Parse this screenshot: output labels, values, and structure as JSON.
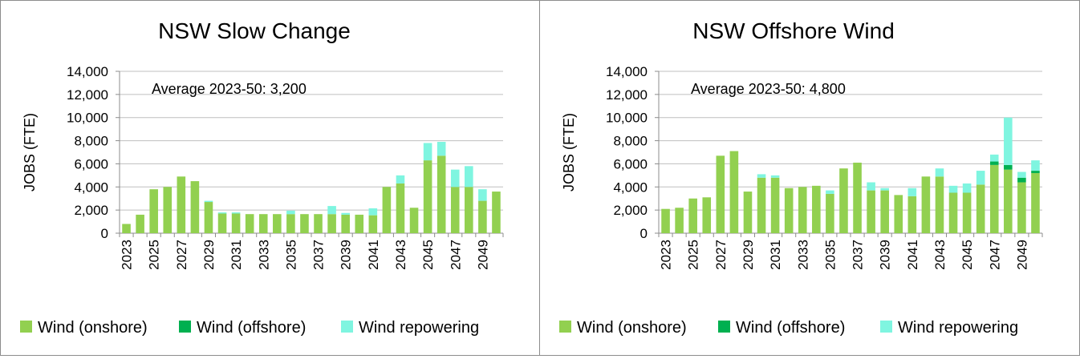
{
  "colors": {
    "onshore": "#92d050",
    "offshore": "#00b050",
    "repowering": "#7ff5e0",
    "grid": "#bfbfbf",
    "axis": "#8c8c8c"
  },
  "chart_data": [
    {
      "type": "bar",
      "stacked": true,
      "title": "NSW Slow Change",
      "ylabel": "JOBS (FTE)",
      "xlabel": "",
      "ylim": [
        0,
        14000
      ],
      "yticks": [
        "0",
        "2,000",
        "4,000",
        "6,000",
        "8,000",
        "10,000",
        "12,000",
        "14,000"
      ],
      "annotation": "Average 2023-50: 3,200",
      "categories": [
        "2023",
        "2024",
        "2025",
        "2026",
        "2027",
        "2028",
        "2029",
        "2030",
        "2031",
        "2032",
        "2033",
        "2034",
        "2035",
        "2036",
        "2037",
        "2038",
        "2039",
        "2040",
        "2041",
        "2042",
        "2043",
        "2044",
        "2045",
        "2046",
        "2047",
        "2048",
        "2049",
        "2050"
      ],
      "xtick_labels": [
        "2023",
        "",
        "2025",
        "",
        "2027",
        "",
        "2029",
        "",
        "2031",
        "",
        "2033",
        "",
        "2035",
        "",
        "2037",
        "",
        "2039",
        "",
        "2041",
        "",
        "2043",
        "",
        "2045",
        "",
        "2047",
        "",
        "2049",
        ""
      ],
      "legend_position": "bottom",
      "grid": true,
      "series": [
        {
          "name": "Wind (onshore)",
          "color": "#92d050",
          "values": [
            800,
            1600,
            3800,
            4000,
            4900,
            4500,
            2700,
            1700,
            1700,
            1650,
            1650,
            1650,
            1650,
            1650,
            1650,
            1650,
            1600,
            1600,
            1550,
            4000,
            4300,
            2200,
            6300,
            6700,
            4000,
            4000,
            2800,
            3600
          ]
        },
        {
          "name": "Wind (offshore)",
          "color": "#00b050",
          "values": [
            0,
            0,
            0,
            0,
            0,
            0,
            0,
            0,
            0,
            0,
            0,
            0,
            0,
            0,
            0,
            0,
            0,
            0,
            0,
            0,
            0,
            0,
            0,
            0,
            0,
            0,
            0,
            0
          ]
        },
        {
          "name": "Wind repowering",
          "color": "#7ff5e0",
          "values": [
            0,
            0,
            0,
            0,
            0,
            0,
            100,
            100,
            100,
            0,
            0,
            0,
            300,
            0,
            0,
            700,
            150,
            0,
            600,
            0,
            700,
            0,
            1500,
            1200,
            1500,
            1800,
            1000,
            0
          ]
        }
      ]
    },
    {
      "type": "bar",
      "stacked": true,
      "title": "NSW Offshore Wind",
      "ylabel": "JOBS (FTE)",
      "xlabel": "",
      "ylim": [
        0,
        14000
      ],
      "yticks": [
        "0",
        "2,000",
        "4,000",
        "6,000",
        "8,000",
        "10,000",
        "12,000",
        "14,000"
      ],
      "annotation": "Average 2023-50: 4,800",
      "categories": [
        "2023",
        "2024",
        "2025",
        "2026",
        "2027",
        "2028",
        "2029",
        "2030",
        "2031",
        "2032",
        "2033",
        "2034",
        "2035",
        "2036",
        "2037",
        "2038",
        "2039",
        "2040",
        "2041",
        "2042",
        "2043",
        "2044",
        "2045",
        "2046",
        "2047",
        "2048",
        "2049",
        "2050"
      ],
      "xtick_labels": [
        "2023",
        "",
        "2025",
        "",
        "2027",
        "",
        "2029",
        "",
        "2031",
        "",
        "2033",
        "",
        "2035",
        "",
        "2037",
        "",
        "2039",
        "",
        "2041",
        "",
        "2043",
        "",
        "2045",
        "",
        "2047",
        "",
        "2049",
        ""
      ],
      "legend_position": "bottom",
      "grid": true,
      "series": [
        {
          "name": "Wind (onshore)",
          "color": "#92d050",
          "values": [
            2100,
            2200,
            3000,
            3100,
            6700,
            7100,
            3600,
            4800,
            4800,
            3900,
            4000,
            4100,
            3400,
            5600,
            6100,
            3700,
            3700,
            3300,
            3200,
            4900,
            4900,
            3500,
            3500,
            4200,
            5900,
            5500,
            4400,
            5200
          ]
        },
        {
          "name": "Wind (offshore)",
          "color": "#00b050",
          "values": [
            0,
            0,
            0,
            0,
            0,
            0,
            0,
            0,
            0,
            0,
            0,
            0,
            0,
            0,
            0,
            0,
            0,
            0,
            0,
            0,
            0,
            0,
            0,
            0,
            300,
            400,
            400,
            200
          ]
        },
        {
          "name": "Wind repowering",
          "color": "#7ff5e0",
          "values": [
            0,
            0,
            0,
            0,
            0,
            0,
            0,
            300,
            200,
            0,
            0,
            0,
            300,
            0,
            0,
            700,
            200,
            0,
            700,
            0,
            700,
            600,
            800,
            1200,
            600,
            4100,
            500,
            900
          ]
        }
      ]
    }
  ]
}
